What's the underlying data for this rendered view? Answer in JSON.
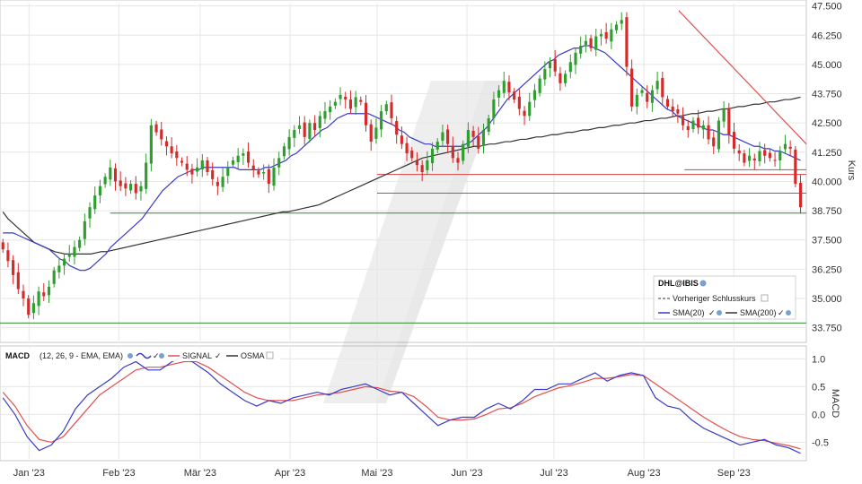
{
  "chart_data": [
    {
      "type": "candlestick",
      "ylabel": "Kurs",
      "ylim": [
        33.2,
        47.6
      ],
      "y_ticks": [
        "47.500",
        "46.250",
        "45.000",
        "43.750",
        "42.500",
        "41.250",
        "40.000",
        "38.750",
        "37.500",
        "36.250",
        "35.000",
        "33.750"
      ],
      "x_ticks": [
        "Jan '23",
        "Feb '23",
        "Mär '23",
        "Apr '23",
        "Mai '23",
        "Jun '23",
        "Jul '23",
        "Aug '23",
        "Sep '23"
      ],
      "x_tick_days": [
        10,
        41,
        69,
        100,
        130,
        161,
        191,
        222,
        253
      ],
      "day_range": [
        0,
        278
      ],
      "closes": [
        37.1,
        36.6,
        36.0,
        35.4,
        35.0,
        34.3,
        34.8,
        35.3,
        35.1,
        35.5,
        36.2,
        36.4,
        36.7,
        36.9,
        37.2,
        37.5,
        38.3,
        38.9,
        39.4,
        39.8,
        40.2,
        40.6,
        40.0,
        39.8,
        39.7,
        39.9,
        39.5,
        39.8,
        40.8,
        42.4,
        42.1,
        41.8,
        41.5,
        41.2,
        41.0,
        40.8,
        40.5,
        40.3,
        40.6,
        40.9,
        40.4,
        40.1,
        39.8,
        40.2,
        40.6,
        40.9,
        41.1,
        41.2,
        40.8,
        40.5,
        40.3,
        40.4,
        39.9,
        40.6,
        41.0,
        41.5,
        41.9,
        42.2,
        42.4,
        41.9,
        42.5,
        42.2,
        42.8,
        43.0,
        43.2,
        43.4,
        43.7,
        43.5,
        43.1,
        43.6,
        43.4,
        42.4,
        41.7,
        42.3,
        43.0,
        43.3,
        42.7,
        42.0,
        41.6,
        41.2,
        41.0,
        40.7,
        40.4,
        40.9,
        41.4,
        41.7,
        42.1,
        41.6,
        41.0,
        40.8,
        41.6,
        42.2,
        41.9,
        41.4,
        42.2,
        42.7,
        43.5,
        43.9,
        44.3,
        43.8,
        43.5,
        43.1,
        42.8,
        43.4,
        43.9,
        44.4,
        44.8,
        45.1,
        44.7,
        44.2,
        44.6,
        45.1,
        45.5,
        45.8,
        46.0,
        45.7,
        46.2,
        46.3,
        46.1,
        46.5,
        46.7,
        46.9,
        44.9,
        43.2,
        43.7,
        43.9,
        43.4,
        43.9,
        44.3,
        43.6,
        43.2,
        43.0,
        42.9,
        42.4,
        42.2,
        42.6,
        42.3,
        42.4,
        41.8,
        41.5,
        42.6,
        43.1,
        42.0,
        41.4,
        41.2,
        40.8,
        41.1,
        40.9,
        41.3,
        41.1,
        41.0,
        40.9,
        41.3,
        41.6,
        41.4,
        39.9,
        38.9
      ],
      "sma20": [
        37.8,
        37.8,
        37.8,
        37.7,
        37.6,
        37.5,
        37.4,
        37.3,
        37.2,
        37.1,
        36.9,
        36.7,
        36.6,
        36.4,
        36.3,
        36.2,
        36.2,
        36.3,
        36.5,
        36.7,
        36.9,
        37.2,
        37.4,
        37.6,
        37.8,
        38.0,
        38.2,
        38.4,
        38.7,
        39.0,
        39.3,
        39.6,
        39.8,
        40.0,
        40.2,
        40.3,
        40.4,
        40.5,
        40.5,
        40.6,
        40.6,
        40.6,
        40.6,
        40.6,
        40.6,
        40.6,
        40.5,
        40.5,
        40.5,
        40.5,
        40.5,
        40.6,
        40.6,
        40.7,
        40.8,
        40.9,
        41.1,
        41.2,
        41.4,
        41.6,
        41.8,
        42.0,
        42.2,
        42.3,
        42.5,
        42.7,
        42.8,
        42.9,
        42.9,
        42.9,
        42.9,
        42.9,
        42.8,
        42.7,
        42.6,
        42.5,
        42.4,
        42.2,
        42.1,
        41.9,
        41.8,
        41.7,
        41.6,
        41.6,
        41.5,
        41.5,
        41.5,
        41.5,
        41.5,
        41.5,
        41.6,
        41.7,
        41.9,
        42.1,
        42.3,
        42.6,
        42.9,
        43.2,
        43.5,
        43.7,
        43.9,
        44.1,
        44.3,
        44.5,
        44.7,
        44.9,
        45.1,
        45.2,
        45.4,
        45.5,
        45.6,
        45.7,
        45.7,
        45.8,
        45.8,
        45.7,
        45.6,
        45.5,
        45.3,
        45.1,
        44.9,
        44.7,
        44.5,
        44.3,
        44.1,
        43.9,
        43.7,
        43.5,
        43.3,
        43.1,
        43.0,
        42.8,
        42.7,
        42.6,
        42.5,
        42.4,
        42.3,
        42.2,
        42.2,
        42.1,
        42.0,
        42.0,
        41.9,
        41.8,
        41.7,
        41.6,
        41.5,
        41.5,
        41.4,
        41.4,
        41.3,
        41.3,
        41.2,
        41.1,
        41.0,
        40.9
      ],
      "sma200": [
        38.7,
        38.4,
        38.2,
        38.0,
        37.8,
        37.6,
        37.4,
        37.3,
        37.2,
        37.1,
        37.0,
        36.95,
        36.9,
        36.9,
        36.9,
        36.9,
        36.9,
        36.9,
        36.95,
        37.0,
        37.0,
        37.05,
        37.1,
        37.15,
        37.2,
        37.25,
        37.3,
        37.35,
        37.4,
        37.45,
        37.5,
        37.55,
        37.6,
        37.65,
        37.7,
        37.75,
        37.8,
        37.85,
        37.9,
        37.95,
        38.0,
        38.05,
        38.1,
        38.15,
        38.2,
        38.25,
        38.3,
        38.35,
        38.4,
        38.45,
        38.5,
        38.55,
        38.6,
        38.65,
        38.7,
        38.7,
        38.75,
        38.8,
        38.85,
        38.9,
        38.95,
        39.0,
        39.1,
        39.2,
        39.3,
        39.4,
        39.5,
        39.6,
        39.7,
        39.8,
        39.9,
        40.0,
        40.1,
        40.2,
        40.3,
        40.4,
        40.5,
        40.6,
        40.7,
        40.8,
        40.9,
        41.0,
        41.05,
        41.1,
        41.15,
        41.2,
        41.25,
        41.3,
        41.35,
        41.4,
        41.45,
        41.5,
        41.5,
        41.55,
        41.6,
        41.6,
        41.65,
        41.7,
        41.7,
        41.75,
        41.8,
        41.8,
        41.85,
        41.9,
        41.9,
        41.95,
        42.0,
        42.0,
        42.05,
        42.1,
        42.1,
        42.15,
        42.2,
        42.2,
        42.25,
        42.3,
        42.3,
        42.35,
        42.4,
        42.4,
        42.45,
        42.5,
        42.5,
        42.55,
        42.6,
        42.6,
        42.65,
        42.7,
        42.7,
        42.75,
        42.8,
        42.8,
        42.85,
        42.9,
        42.9,
        42.95,
        43.0,
        43.0,
        43.05,
        43.1,
        43.1,
        43.15,
        43.2,
        43.2,
        43.25,
        43.3,
        43.3,
        43.35,
        43.4,
        43.4,
        43.45,
        43.5,
        43.5,
        43.55,
        43.6
      ],
      "trendline": {
        "from": [
          234,
          47.3
        ],
        "to": [
          278,
          41.6
        ]
      },
      "hlines_red": [
        39.5,
        40.3,
        40.5
      ],
      "hlines_green": [
        38.65,
        33.95
      ],
      "legend": {
        "title": "DHL@IBIS",
        "prev_close": "Vorheriger Schlusskurs",
        "sma20": "SMA(20)",
        "sma200": "SMA(200)"
      },
      "colors": {
        "up": "#2e9e2e",
        "down": "#d42a2a",
        "sma20": "#3a3ac8",
        "sma200": "#333333",
        "trend": "#e05050",
        "green_line": "#2e8b2e"
      }
    },
    {
      "type": "line",
      "ylabel": "MACD",
      "ylim": [
        -0.8,
        1.2
      ],
      "y_ticks": [
        "1.0",
        "0.5",
        "0.0",
        "-0.5"
      ],
      "y_tick_values": [
        1.0,
        0.5,
        0.0,
        -0.5
      ],
      "legend": {
        "title": "MACD",
        "params": "(12, 26, 9 - EMA, EMA)",
        "signal": "SIGNAL",
        "osma": "OSMA"
      },
      "macd": [
        0.3,
        0.0,
        -0.4,
        -0.65,
        -0.55,
        -0.3,
        0.1,
        0.35,
        0.5,
        0.65,
        0.85,
        0.95,
        0.8,
        0.8,
        0.95,
        1.05,
        0.9,
        0.75,
        0.55,
        0.4,
        0.25,
        0.15,
        0.25,
        0.2,
        0.3,
        0.35,
        0.4,
        0.35,
        0.45,
        0.5,
        0.55,
        0.45,
        0.35,
        0.4,
        0.2,
        0.0,
        -0.2,
        -0.1,
        -0.05,
        -0.05,
        0.1,
        0.2,
        0.1,
        0.25,
        0.45,
        0.45,
        0.55,
        0.55,
        0.65,
        0.75,
        0.6,
        0.7,
        0.75,
        0.7,
        0.3,
        0.15,
        0.1,
        -0.1,
        -0.25,
        -0.35,
        -0.45,
        -0.55,
        -0.5,
        -0.45,
        -0.55,
        -0.6,
        -0.7
      ],
      "signal": [
        0.4,
        0.15,
        -0.2,
        -0.45,
        -0.5,
        -0.4,
        -0.15,
        0.1,
        0.35,
        0.5,
        0.65,
        0.8,
        0.85,
        0.85,
        0.9,
        0.95,
        0.95,
        0.85,
        0.7,
        0.55,
        0.4,
        0.3,
        0.25,
        0.25,
        0.25,
        0.3,
        0.35,
        0.37,
        0.4,
        0.45,
        0.5,
        0.48,
        0.42,
        0.4,
        0.32,
        0.15,
        -0.05,
        -0.1,
        -0.1,
        -0.08,
        0.0,
        0.1,
        0.12,
        0.2,
        0.32,
        0.4,
        0.48,
        0.52,
        0.58,
        0.65,
        0.65,
        0.68,
        0.72,
        0.7,
        0.55,
        0.4,
        0.25,
        0.1,
        -0.05,
        -0.18,
        -0.3,
        -0.4,
        -0.45,
        -0.47,
        -0.52,
        -0.56,
        -0.62
      ],
      "colors": {
        "macd": "#3a3ac8",
        "signal": "#e05050"
      }
    }
  ]
}
